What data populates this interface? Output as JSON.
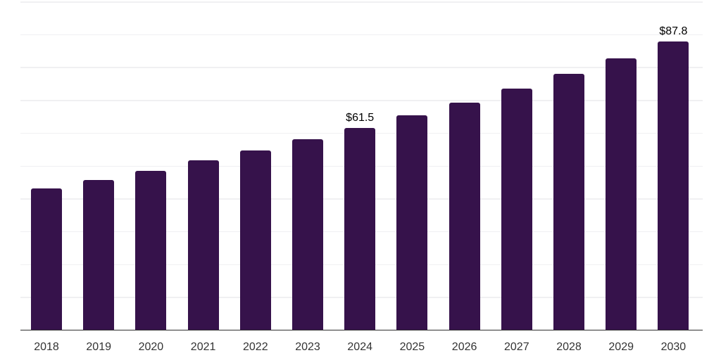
{
  "chart_data": {
    "type": "bar",
    "title": "",
    "xlabel": "",
    "ylabel": "",
    "categories": [
      "2018",
      "2019",
      "2020",
      "2021",
      "2022",
      "2023",
      "2024",
      "2025",
      "2026",
      "2027",
      "2028",
      "2029",
      "2030"
    ],
    "values": [
      43.1,
      45.7,
      48.5,
      51.5,
      54.6,
      58.0,
      61.5,
      65.3,
      69.2,
      73.5,
      78.0,
      82.7,
      87.8
    ],
    "data_labels": [
      "",
      "",
      "",
      "",
      "",
      "",
      "$61.5",
      "",
      "",
      "",
      "",
      "",
      "$87.8"
    ],
    "ylim": [
      0,
      100
    ],
    "gridline_step": 10,
    "grid": true,
    "legend_position": "none",
    "colors": {
      "background": "#ffffff",
      "bar": "#36124B",
      "gridline": "#f0f0f2",
      "axis": "#303030",
      "tick_label": "#333333",
      "data_label": "#000000"
    }
  }
}
